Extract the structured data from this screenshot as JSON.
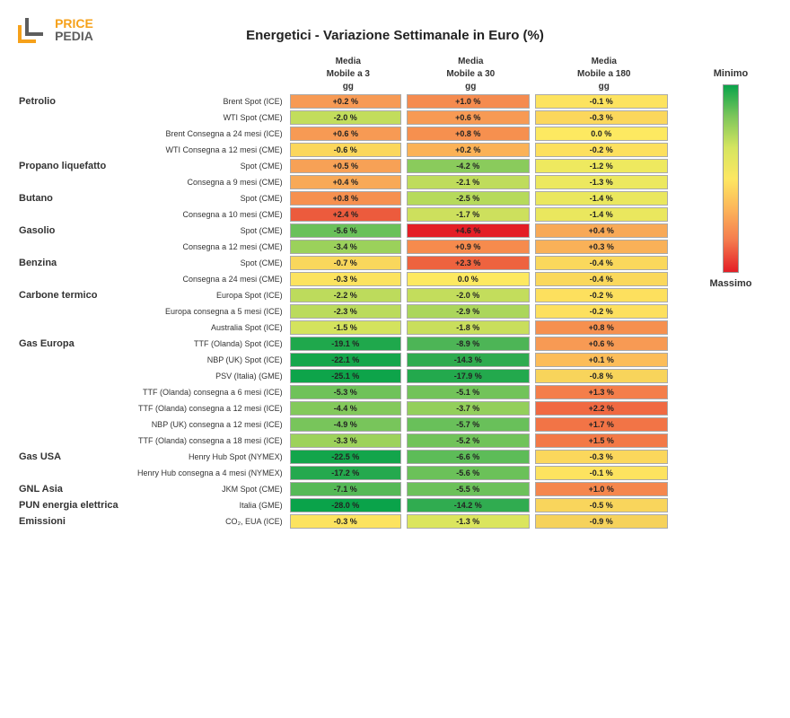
{
  "logo": {
    "top": "PRICE",
    "bottom": "PEDIA",
    "accent": "#f6a11a",
    "text_color": "#5d5d5d"
  },
  "title": "Energetici - Variazione Settimanale in Euro (%)",
  "columns": [
    {
      "l1": "Media",
      "l2": "Mobile a 3",
      "l3": "gg"
    },
    {
      "l1": "Media",
      "l2": "Mobile a 30",
      "l3": "gg"
    },
    {
      "l1": "Media",
      "l2": "Mobile a 180",
      "l3": "gg"
    }
  ],
  "legend": {
    "min_label": "Minimo",
    "max_label": "Massimo",
    "gradient_stops": [
      "#0aa34a",
      "#7dc65b",
      "#d5e55f",
      "#fde762",
      "#fcb45a",
      "#f47a4e",
      "#e41e26"
    ]
  },
  "cell_border": "#aaaaaa",
  "rows": [
    {
      "category": "Petrolio",
      "label": "Brent Spot (ICE)",
      "cells": [
        {
          "v": "+0.2 %",
          "c": "#f79a54"
        },
        {
          "v": "+1.0 %",
          "c": "#f58b4f"
        },
        {
          "v": "-0.1 %",
          "c": "#fde35f"
        }
      ]
    },
    {
      "category": "",
      "label": "WTI Spot (CME)",
      "cells": [
        {
          "v": "-2.0 %",
          "c": "#c2dd5c"
        },
        {
          "v": "+0.6 %",
          "c": "#f79a54"
        },
        {
          "v": "-0.3 %",
          "c": "#fbd75c"
        }
      ]
    },
    {
      "category": "",
      "label": "Brent Consegna a 24 mesi (ICE)",
      "cells": [
        {
          "v": "+0.6 %",
          "c": "#f79a54"
        },
        {
          "v": "+0.8 %",
          "c": "#f6904f"
        },
        {
          "v": "0.0 %",
          "c": "#fde961"
        }
      ]
    },
    {
      "category": "",
      "label": "WTI Consegna a 12 mesi (CME)",
      "cells": [
        {
          "v": "-0.6 %",
          "c": "#fbd75c"
        },
        {
          "v": "+0.2 %",
          "c": "#fbb257"
        },
        {
          "v": "-0.2 %",
          "c": "#fde05e"
        }
      ]
    },
    {
      "category": "Propano liquefatto",
      "label": "Spot (CME)",
      "cells": [
        {
          "v": "+0.5 %",
          "c": "#f7a156"
        },
        {
          "v": "-4.2 %",
          "c": "#8acb5c"
        },
        {
          "v": "-1.2 %",
          "c": "#eee95f"
        }
      ]
    },
    {
      "category": "",
      "label": "Consegna a 9 mesi (CME)",
      "cells": [
        {
          "v": "+0.4 %",
          "c": "#f8a957"
        },
        {
          "v": "-2.1 %",
          "c": "#bfdc5c"
        },
        {
          "v": "-1.3 %",
          "c": "#ece85f"
        }
      ]
    },
    {
      "category": "Butano",
      "label": "Spot (CME)",
      "cells": [
        {
          "v": "+0.8 %",
          "c": "#f6904f"
        },
        {
          "v": "-2.5 %",
          "c": "#b6da5b"
        },
        {
          "v": "-1.4 %",
          "c": "#eae75e"
        }
      ]
    },
    {
      "category": "",
      "label": "Consegna a 10 mesi (CME)",
      "cells": [
        {
          "v": "+2.4 %",
          "c": "#ec5b3d"
        },
        {
          "v": "-1.7 %",
          "c": "#cde05d"
        },
        {
          "v": "-1.4 %",
          "c": "#eae75e"
        }
      ]
    },
    {
      "category": "Gasolio",
      "label": "Spot (CME)",
      "cells": [
        {
          "v": "-5.6 %",
          "c": "#6ac15a"
        },
        {
          "v": "+4.6 %",
          "c": "#e41e26"
        },
        {
          "v": "+0.4 %",
          "c": "#f8a957"
        }
      ]
    },
    {
      "category": "",
      "label": "Consegna a 12 mesi (CME)",
      "cells": [
        {
          "v": "-3.4 %",
          "c": "#9bd15b"
        },
        {
          "v": "+0.9 %",
          "c": "#f68b4d"
        },
        {
          "v": "+0.3 %",
          "c": "#f9b158"
        }
      ]
    },
    {
      "category": "Benzina",
      "label": "Spot (CME)",
      "cells": [
        {
          "v": "-0.7 %",
          "c": "#f9d75c"
        },
        {
          "v": "+2.3 %",
          "c": "#ee633f"
        },
        {
          "v": "-0.4 %",
          "c": "#fad85c"
        }
      ]
    },
    {
      "category": "",
      "label": "Consegna a 24 mesi (CME)",
      "cells": [
        {
          "v": "-0.3 %",
          "c": "#fce35f"
        },
        {
          "v": "0.0 %",
          "c": "#fde961"
        },
        {
          "v": "-0.4 %",
          "c": "#fad85c"
        }
      ]
    },
    {
      "category": "Carbone termico",
      "label": "Europa Spot (ICE)",
      "cells": [
        {
          "v": "-2.2 %",
          "c": "#bddb5c"
        },
        {
          "v": "-2.0 %",
          "c": "#c3dd5c"
        },
        {
          "v": "-0.2 %",
          "c": "#fde05e"
        }
      ]
    },
    {
      "category": "",
      "label": "Europa consegna a 5 mesi (ICE)",
      "cells": [
        {
          "v": "-2.3 %",
          "c": "#bbdb5c"
        },
        {
          "v": "-2.9 %",
          "c": "#abd65b"
        },
        {
          "v": "-0.2 %",
          "c": "#fde05e"
        }
      ]
    },
    {
      "category": "",
      "label": "Australia Spot (ICE)",
      "cells": [
        {
          "v": "-1.5 %",
          "c": "#d4e35d"
        },
        {
          "v": "-1.8 %",
          "c": "#c9de5c"
        },
        {
          "v": "+0.8 %",
          "c": "#f6904f"
        }
      ]
    },
    {
      "category": "Gas Europa",
      "label": "TTF (Olanda) Spot (ICE)",
      "cells": [
        {
          "v": "-19.1 %",
          "c": "#1fa84c"
        },
        {
          "v": "-8.9 %",
          "c": "#4db556"
        },
        {
          "v": "+0.6 %",
          "c": "#f79a54"
        }
      ]
    },
    {
      "category": "",
      "label": "NBP (UK) Spot (ICE)",
      "cells": [
        {
          "v": "-22.1 %",
          "c": "#15a64b"
        },
        {
          "v": "-14.3 %",
          "c": "#2fab4f"
        },
        {
          "v": "+0.1 %",
          "c": "#fcbd59"
        }
      ]
    },
    {
      "category": "",
      "label": "PSV (Italia) (GME)",
      "cells": [
        {
          "v": "-25.1 %",
          "c": "#0ea44a"
        },
        {
          "v": "-17.9 %",
          "c": "#23a94d"
        },
        {
          "v": "-0.8 %",
          "c": "#f8d45b"
        }
      ]
    },
    {
      "category": "",
      "label": "TTF (Olanda) consegna a 6 mesi (ICE)",
      "cells": [
        {
          "v": "-5.3 %",
          "c": "#6fc25a"
        },
        {
          "v": "-5.1 %",
          "c": "#72c35a"
        },
        {
          "v": "+1.3 %",
          "c": "#f47e4a"
        }
      ]
    },
    {
      "category": "",
      "label": "TTF (Olanda) consegna a 12 mesi (ICE)",
      "cells": [
        {
          "v": "-4.4 %",
          "c": "#83c95b"
        },
        {
          "v": "-3.7 %",
          "c": "#93cf5b"
        },
        {
          "v": "+2.2 %",
          "c": "#f06942"
        }
      ]
    },
    {
      "category": "",
      "label": "NBP (UK) consegna a 12 mesi (ICE)",
      "cells": [
        {
          "v": "-4.9 %",
          "c": "#78c55b"
        },
        {
          "v": "-5.7 %",
          "c": "#69c05a"
        },
        {
          "v": "+1.7 %",
          "c": "#f27446"
        }
      ]
    },
    {
      "category": "",
      "label": "TTF (Olanda) consegna a 18 mesi (ICE)",
      "cells": [
        {
          "v": "-3.3 %",
          "c": "#9dd25b"
        },
        {
          "v": "-5.2 %",
          "c": "#71c35a"
        },
        {
          "v": "+1.5 %",
          "c": "#f37947"
        }
      ]
    },
    {
      "category": "Gas USA",
      "label": "Henry Hub Spot (NYMEX)",
      "cells": [
        {
          "v": "-22.5 %",
          "c": "#13a54b"
        },
        {
          "v": "-6.6 %",
          "c": "#5dbc58"
        },
        {
          "v": "-0.3 %",
          "c": "#fbd75c"
        }
      ]
    },
    {
      "category": "",
      "label": "Henry Hub consegna a 4 mesi (NYMEX)",
      "cells": [
        {
          "v": "-17.2 %",
          "c": "#25a94e"
        },
        {
          "v": "-5.6 %",
          "c": "#6bc159"
        },
        {
          "v": "-0.1 %",
          "c": "#fde35f"
        }
      ]
    },
    {
      "category": "GNL Asia",
      "label": "JKM Spot (CME)",
      "cells": [
        {
          "v": "-7.1 %",
          "c": "#56b957"
        },
        {
          "v": "-5.5 %",
          "c": "#6cc15a"
        },
        {
          "v": "+1.0 %",
          "c": "#f5874d"
        }
      ]
    },
    {
      "category": "PUN energia elettrica",
      "label": "Italia (GME)",
      "cells": [
        {
          "v": "-28.0 %",
          "c": "#0aa34a"
        },
        {
          "v": "-14.2 %",
          "c": "#30ac50"
        },
        {
          "v": "-0.5 %",
          "c": "#f9d55c"
        }
      ]
    },
    {
      "category": "Emissioni",
      "label": "CO₂, EUA (ICE)",
      "cells": [
        {
          "v": "-0.3 %",
          "c": "#fce35f"
        },
        {
          "v": "-1.3 %",
          "c": "#dbe55d"
        },
        {
          "v": "-0.9 %",
          "c": "#f6d25b"
        }
      ]
    }
  ]
}
